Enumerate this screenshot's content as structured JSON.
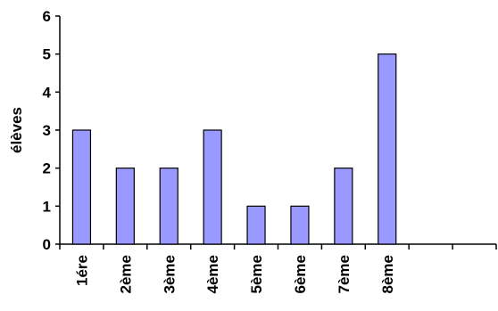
{
  "chart_data": {
    "type": "bar",
    "title": "",
    "xlabel": "",
    "ylabel": "élèves",
    "categories": [
      "1ére",
      "2ème",
      "3ème",
      "4ème",
      "5ème",
      "6ème",
      "7ème",
      "8ème",
      "",
      ""
    ],
    "values": [
      3,
      2,
      2,
      3,
      1,
      1,
      2,
      5,
      null,
      null
    ],
    "ylim": [
      0,
      6
    ],
    "yticks": [
      0,
      1,
      2,
      3,
      4,
      5,
      6
    ],
    "grid": false,
    "legend": "none",
    "bar_color": "#9999ff",
    "bar_edge_color": "#000000"
  }
}
